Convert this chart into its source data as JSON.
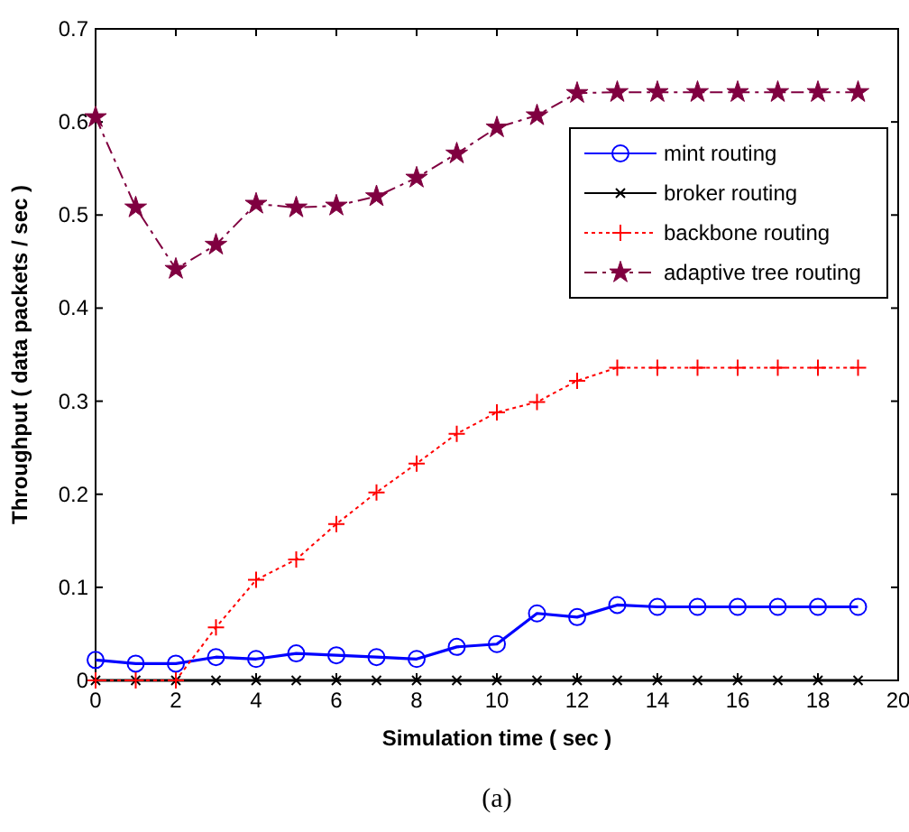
{
  "chart_data": {
    "type": "line",
    "xlabel": "Simulation time ( sec )",
    "ylabel": "Throughput ( data packets / sec )",
    "annotations": [
      "(a)"
    ],
    "x": [
      0,
      1,
      2,
      3,
      4,
      5,
      6,
      7,
      8,
      9,
      10,
      11,
      12,
      13,
      14,
      15,
      16,
      17,
      18,
      19
    ],
    "series": [
      {
        "name": "mint routing",
        "color": "#0000ff",
        "marker": "circle",
        "line_style": "solid",
        "values": [
          0.022,
          0.018,
          0.018,
          0.025,
          0.023,
          0.029,
          0.027,
          0.025,
          0.023,
          0.036,
          0.039,
          0.072,
          0.068,
          0.081,
          0.079,
          0.079,
          0.079,
          0.079,
          0.079,
          0.079
        ]
      },
      {
        "name": "broker routing",
        "color": "#000000",
        "marker": "cross",
        "line_style": "solid",
        "values": [
          0,
          0,
          0,
          0,
          0,
          0,
          0,
          0,
          0,
          0,
          0,
          0,
          0,
          0,
          0,
          0,
          0,
          0,
          0,
          0
        ]
      },
      {
        "name": "backbone routing",
        "color": "#ff0000",
        "marker": "plus",
        "line_style": "dotted",
        "values": [
          0,
          0,
          0,
          0.057,
          0.108,
          0.13,
          0.168,
          0.202,
          0.233,
          0.265,
          0.288,
          0.299,
          0.322,
          0.336,
          0.336,
          0.336,
          0.336,
          0.336,
          0.336,
          0.336
        ]
      },
      {
        "name": "adaptive tree routing",
        "color": "#800040",
        "marker": "star",
        "line_style": "dashdot",
        "values": [
          0.605,
          0.508,
          0.442,
          0.468,
          0.512,
          0.508,
          0.51,
          0.52,
          0.54,
          0.566,
          0.594,
          0.607,
          0.631,
          0.632,
          0.632,
          0.632,
          0.632,
          0.632,
          0.632,
          0.632
        ]
      }
    ],
    "xlim": [
      0,
      20
    ],
    "ylim": [
      0,
      0.7
    ],
    "xticks": [
      0,
      2,
      4,
      6,
      8,
      10,
      12,
      14,
      16,
      18,
      20
    ],
    "yticks": [
      0,
      0.1,
      0.2,
      0.3,
      0.4,
      0.5,
      0.6,
      0.7
    ],
    "grid": false,
    "legend": "top right"
  }
}
